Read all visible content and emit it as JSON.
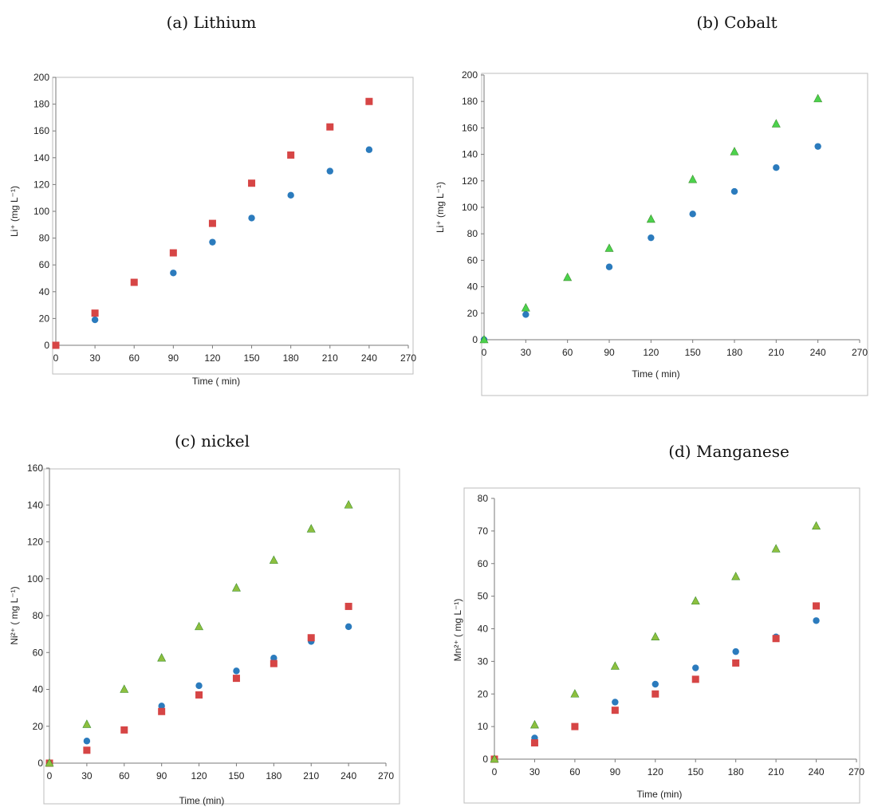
{
  "colors": {
    "circle": "#2b7bbd",
    "square": "#d64545",
    "triangle_green": "#4cd24c",
    "triangle_olive": "#8dbf3f"
  },
  "chart_data": [
    {
      "type": "scatter",
      "title": "(a) Lithium",
      "xlabel": "Time ( min)",
      "ylabel": "Li⁺ (mg L⁻¹)",
      "xlim": [
        0,
        270
      ],
      "ylim": [
        0,
        200
      ],
      "xticks": [
        0,
        30,
        60,
        90,
        120,
        150,
        180,
        210,
        240,
        270
      ],
      "yticks": [
        0,
        20,
        40,
        60,
        80,
        100,
        120,
        140,
        160,
        180,
        200
      ],
      "series": [
        {
          "marker": "circle",
          "color": "#2b7bbd",
          "x": [
            0,
            30,
            90,
            120,
            150,
            180,
            210,
            240
          ],
          "y": [
            0,
            19,
            54,
            77,
            95,
            112,
            130,
            146
          ]
        },
        {
          "marker": "square",
          "color": "#d64545",
          "x": [
            0,
            30,
            60,
            90,
            120,
            150,
            180,
            210,
            240
          ],
          "y": [
            0,
            24,
            47,
            69,
            91,
            121,
            142,
            163,
            182
          ]
        }
      ]
    },
    {
      "type": "scatter",
      "title": "(b) Cobalt",
      "xlabel": "Time ( min)",
      "ylabel": "Li⁺ (mg L⁻¹)",
      "xlim": [
        0,
        270
      ],
      "ylim": [
        0,
        200
      ],
      "xticks": [
        0,
        30,
        60,
        90,
        120,
        150,
        180,
        210,
        240,
        270
      ],
      "yticks": [
        0,
        20,
        40,
        60,
        80,
        100,
        120,
        140,
        160,
        180,
        200
      ],
      "series": [
        {
          "marker": "circle",
          "color": "#2b7bbd",
          "x": [
            0,
            30,
            90,
            120,
            150,
            180,
            210,
            240
          ],
          "y": [
            0,
            19,
            55,
            77,
            95,
            112,
            130,
            146
          ]
        },
        {
          "marker": "triangle",
          "color": "#4cd24c",
          "x": [
            0,
            30,
            60,
            90,
            120,
            150,
            180,
            210,
            240
          ],
          "y": [
            0,
            24,
            47,
            69,
            91,
            121,
            142,
            163,
            182
          ]
        }
      ]
    },
    {
      "type": "scatter",
      "title": "(c) nickel",
      "xlabel": "Time (min)",
      "ylabel": "Ni²⁺ ( mg L⁻¹)",
      "xlim": [
        0,
        270
      ],
      "ylim": [
        0,
        160
      ],
      "xticks": [
        0,
        30,
        60,
        90,
        120,
        150,
        180,
        210,
        240,
        270
      ],
      "yticks": [
        0,
        20,
        40,
        60,
        80,
        100,
        120,
        140,
        160
      ],
      "series": [
        {
          "marker": "circle",
          "color": "#2b7bbd",
          "x": [
            0,
            30,
            90,
            120,
            150,
            180,
            210,
            240
          ],
          "y": [
            0,
            12,
            31,
            42,
            50,
            57,
            66,
            74
          ]
        },
        {
          "marker": "square",
          "color": "#d64545",
          "x": [
            0,
            30,
            60,
            90,
            120,
            150,
            180,
            210,
            240
          ],
          "y": [
            0,
            7,
            18,
            28,
            37,
            46,
            54,
            68,
            85
          ]
        },
        {
          "marker": "triangle",
          "color": "#8dbf3f",
          "x": [
            0,
            30,
            60,
            90,
            120,
            150,
            180,
            210,
            240
          ],
          "y": [
            0,
            21,
            40,
            57,
            74,
            95,
            110,
            127,
            140
          ]
        }
      ]
    },
    {
      "type": "scatter",
      "title": "(d) Manganese",
      "xlabel": "Time (min)",
      "ylabel": "Mn²⁺ ( mg L⁻¹)",
      "xlim": [
        0,
        270
      ],
      "ylim": [
        0,
        80
      ],
      "xticks": [
        0,
        30,
        60,
        90,
        120,
        150,
        180,
        210,
        240,
        270
      ],
      "yticks": [
        0,
        10,
        20,
        30,
        40,
        50,
        60,
        70,
        80
      ],
      "series": [
        {
          "marker": "circle",
          "color": "#2b7bbd",
          "x": [
            0,
            30,
            90,
            120,
            150,
            180,
            210,
            240
          ],
          "y": [
            0,
            6.5,
            17.5,
            23,
            28,
            33,
            37.5,
            42.5
          ]
        },
        {
          "marker": "square",
          "color": "#d64545",
          "x": [
            0,
            30,
            60,
            90,
            120,
            150,
            180,
            210,
            240
          ],
          "y": [
            0,
            5,
            10,
            15,
            20,
            24.5,
            29.5,
            37,
            47
          ]
        },
        {
          "marker": "triangle",
          "color": "#8dbf3f",
          "x": [
            0,
            30,
            60,
            90,
            120,
            150,
            180,
            210,
            240
          ],
          "y": [
            0,
            10.5,
            20,
            28.5,
            37.5,
            48.5,
            56,
            64.5,
            71.5
          ]
        }
      ]
    }
  ]
}
